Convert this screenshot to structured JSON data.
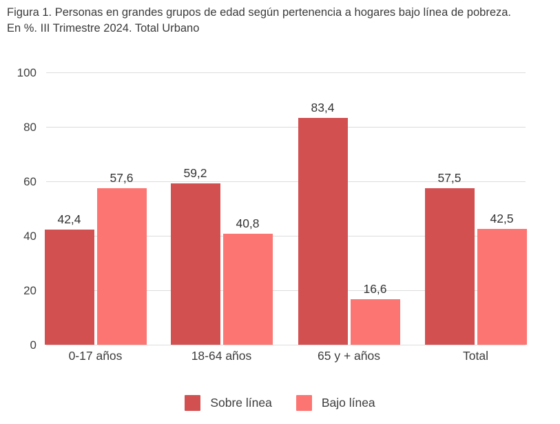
{
  "title": {
    "line1": "Figura 1. Personas en grandes grupos de edad según pertenencia a hogares bajo línea de pobreza.",
    "line2": "En %. III Trimestre 2024. Total Urbano"
  },
  "chart_data": {
    "type": "bar",
    "title": "Figura 1. Personas en grandes grupos de edad según pertenencia a hogares bajo línea de pobreza. En %. III Trimestre 2024. Total Urbano",
    "categories": [
      "0-17 años",
      "18-64 años",
      "65 y + años",
      "Total"
    ],
    "series": [
      {
        "name": "Sobre línea",
        "color": "#d35051",
        "values": [
          42.4,
          59.2,
          83.4,
          57.5
        ],
        "labels": [
          "42,4",
          "59,2",
          "83,4",
          "57,5"
        ]
      },
      {
        "name": "Bajo línea",
        "color": "#fc7572",
        "values": [
          57.6,
          40.8,
          16.6,
          42.5
        ],
        "labels": [
          "57,6",
          "40,8",
          "16,6",
          "42,5"
        ]
      }
    ],
    "xlabel": "",
    "ylabel": "",
    "ylim": [
      0,
      100
    ],
    "yticks": [
      0,
      20,
      40,
      60,
      80,
      100
    ],
    "grid": true,
    "legend_position": "bottom",
    "background": "#ffffff",
    "gridline_color": "#dcdcdc",
    "text_color": "#3c3c3c"
  }
}
